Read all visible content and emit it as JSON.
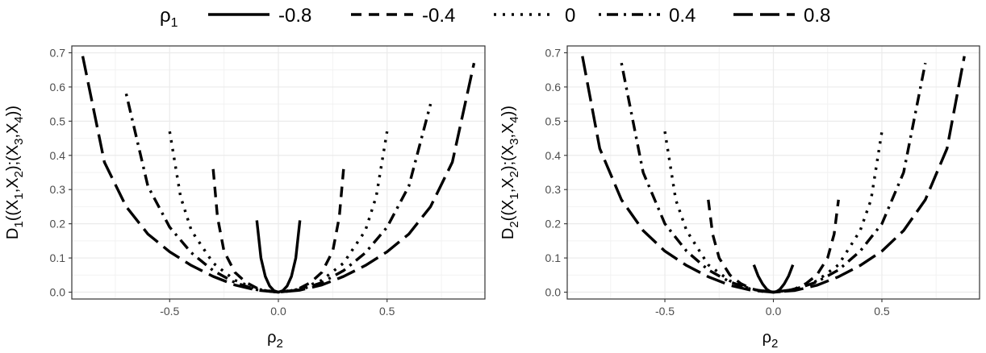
{
  "legend": {
    "title_main": "ρ",
    "title_sub": "1",
    "position": "top",
    "entries": [
      {
        "label": "-0.8",
        "dash": "solid"
      },
      {
        "label": "-0.4",
        "dash": "dashed"
      },
      {
        "label": "0",
        "dash": "dotted"
      },
      {
        "label": "0.4",
        "dash": "dotdash"
      },
      {
        "label": "0.8",
        "dash": "longdash"
      }
    ]
  },
  "panels": [
    {
      "ylabel_parts": [
        [
          "D",
          false
        ],
        [
          "1",
          true
        ],
        [
          "((X",
          false
        ],
        [
          "1",
          true
        ],
        [
          ",X",
          false
        ],
        [
          "2",
          true
        ],
        [
          ");(X",
          false
        ],
        [
          "3",
          true
        ],
        [
          ",X",
          false
        ],
        [
          "4",
          true
        ],
        [
          "))",
          false
        ]
      ],
      "xlabel_main": "ρ",
      "xlabel_sub": "2"
    },
    {
      "ylabel_parts": [
        [
          "D",
          false
        ],
        [
          "2",
          true
        ],
        [
          "((X",
          false
        ],
        [
          "1",
          true
        ],
        [
          ",X",
          false
        ],
        [
          "2",
          true
        ],
        [
          ");(X",
          false
        ],
        [
          "3",
          true
        ],
        [
          ",X",
          false
        ],
        [
          "4",
          true
        ],
        [
          "))",
          false
        ]
      ],
      "xlabel_main": "ρ",
      "xlabel_sub": "2"
    }
  ],
  "chart_data": [
    {
      "type": "line",
      "xlabel": "ρ2",
      "ylabel": "D1((X1,X2);(X3,X4))",
      "xlim": [
        -0.95,
        0.95
      ],
      "ylim": [
        -0.02,
        0.72
      ],
      "xticks": [
        -0.5,
        0.0,
        0.5
      ],
      "xtick_labels": [
        "-0.5",
        "0.0",
        "0.5"
      ],
      "yticks": [
        0.0,
        0.1,
        0.2,
        0.3,
        0.4,
        0.5,
        0.6,
        0.7
      ],
      "ytick_labels": [
        "0.0",
        "0.1",
        "0.2",
        "0.3",
        "0.4",
        "0.5",
        "0.6",
        "0.7"
      ],
      "grid": true,
      "series": [
        {
          "name": "-0.8",
          "x": [
            -0.099,
            -0.08,
            -0.06,
            -0.04,
            -0.02,
            0.0,
            0.02,
            0.04,
            0.06,
            0.08,
            0.099
          ],
          "y": [
            0.21,
            0.1,
            0.046,
            0.018,
            0.004,
            0.0,
            0.004,
            0.018,
            0.046,
            0.1,
            0.21
          ]
        },
        {
          "name": "-0.4",
          "x": [
            -0.3,
            -0.28,
            -0.25,
            -0.2,
            -0.15,
            -0.1,
            -0.05,
            0.0,
            0.05,
            0.1,
            0.15,
            0.2,
            0.25,
            0.28,
            0.3
          ],
          "y": [
            0.36,
            0.22,
            0.12,
            0.058,
            0.029,
            0.012,
            0.003,
            0.0,
            0.003,
            0.012,
            0.029,
            0.058,
            0.12,
            0.22,
            0.36
          ]
        },
        {
          "name": "0",
          "x": [
            -0.5,
            -0.45,
            -0.4,
            -0.3,
            -0.2,
            -0.1,
            0.0,
            0.1,
            0.2,
            0.3,
            0.4,
            0.45,
            0.5
          ],
          "y": [
            0.47,
            0.28,
            0.18,
            0.085,
            0.035,
            0.009,
            0.0,
            0.009,
            0.035,
            0.085,
            0.18,
            0.28,
            0.47
          ]
        },
        {
          "name": "0.4",
          "x": [
            -0.7,
            -0.6,
            -0.5,
            -0.4,
            -0.3,
            -0.2,
            -0.1,
            0.0,
            0.1,
            0.2,
            0.3,
            0.4,
            0.5,
            0.6,
            0.7
          ],
          "y": [
            0.58,
            0.31,
            0.19,
            0.115,
            0.063,
            0.028,
            0.007,
            0.0,
            0.007,
            0.028,
            0.063,
            0.115,
            0.19,
            0.31,
            0.55
          ]
        },
        {
          "name": "0.8",
          "x": [
            -0.9,
            -0.8,
            -0.7,
            -0.6,
            -0.5,
            -0.4,
            -0.3,
            -0.2,
            -0.1,
            0.0,
            0.1,
            0.2,
            0.3,
            0.4,
            0.5,
            0.6,
            0.7,
            0.8,
            0.9
          ],
          "y": [
            0.69,
            0.38,
            0.25,
            0.17,
            0.118,
            0.078,
            0.046,
            0.021,
            0.006,
            0.0,
            0.006,
            0.021,
            0.046,
            0.078,
            0.118,
            0.17,
            0.25,
            0.38,
            0.67
          ]
        }
      ]
    },
    {
      "type": "line",
      "xlabel": "ρ2",
      "ylabel": "D2((X1,X2);(X3,X4))",
      "xlim": [
        -0.95,
        0.95
      ],
      "ylim": [
        -0.02,
        0.72
      ],
      "xticks": [
        -0.5,
        0.0,
        0.5
      ],
      "xtick_labels": [
        "-0.5",
        "0.0",
        "0.5"
      ],
      "yticks": [
        0.0,
        0.1,
        0.2,
        0.3,
        0.4,
        0.5,
        0.6,
        0.7
      ],
      "ytick_labels": [
        "0.0",
        "0.1",
        "0.2",
        "0.3",
        "0.4",
        "0.5",
        "0.6",
        "0.7"
      ],
      "grid": true,
      "series": [
        {
          "name": "-0.8",
          "x": [
            -0.09,
            -0.07,
            -0.05,
            -0.03,
            -0.015,
            0.0,
            0.015,
            0.03,
            0.05,
            0.07,
            0.09
          ],
          "y": [
            0.08,
            0.047,
            0.024,
            0.008,
            0.002,
            0.0,
            0.002,
            0.008,
            0.024,
            0.047,
            0.08
          ]
        },
        {
          "name": "-0.4",
          "x": [
            -0.3,
            -0.28,
            -0.25,
            -0.2,
            -0.15,
            -0.1,
            -0.05,
            0.0,
            0.05,
            0.1,
            0.15,
            0.2,
            0.25,
            0.28,
            0.3
          ],
          "y": [
            0.27,
            0.17,
            0.1,
            0.05,
            0.025,
            0.01,
            0.002,
            0.0,
            0.002,
            0.01,
            0.025,
            0.05,
            0.1,
            0.17,
            0.27
          ]
        },
        {
          "name": "0",
          "x": [
            -0.5,
            -0.45,
            -0.4,
            -0.3,
            -0.2,
            -0.1,
            0.0,
            0.1,
            0.2,
            0.3,
            0.4,
            0.45,
            0.5
          ],
          "y": [
            0.47,
            0.27,
            0.18,
            0.08,
            0.033,
            0.008,
            0.0,
            0.008,
            0.033,
            0.08,
            0.18,
            0.27,
            0.47
          ]
        },
        {
          "name": "0.4",
          "x": [
            -0.7,
            -0.6,
            -0.5,
            -0.4,
            -0.3,
            -0.2,
            -0.1,
            0.0,
            0.1,
            0.2,
            0.3,
            0.4,
            0.5,
            0.6,
            0.7
          ],
          "y": [
            0.67,
            0.35,
            0.2,
            0.12,
            0.065,
            0.03,
            0.008,
            0.0,
            0.008,
            0.03,
            0.065,
            0.12,
            0.2,
            0.35,
            0.67
          ]
        },
        {
          "name": "0.8",
          "x": [
            -0.88,
            -0.8,
            -0.7,
            -0.6,
            -0.5,
            -0.4,
            -0.3,
            -0.2,
            -0.1,
            0.0,
            0.1,
            0.2,
            0.3,
            0.4,
            0.5,
            0.6,
            0.7,
            0.8,
            0.88
          ],
          "y": [
            0.69,
            0.42,
            0.27,
            0.18,
            0.12,
            0.078,
            0.045,
            0.02,
            0.005,
            0.0,
            0.005,
            0.02,
            0.045,
            0.078,
            0.12,
            0.18,
            0.27,
            0.42,
            0.69
          ]
        }
      ]
    }
  ]
}
